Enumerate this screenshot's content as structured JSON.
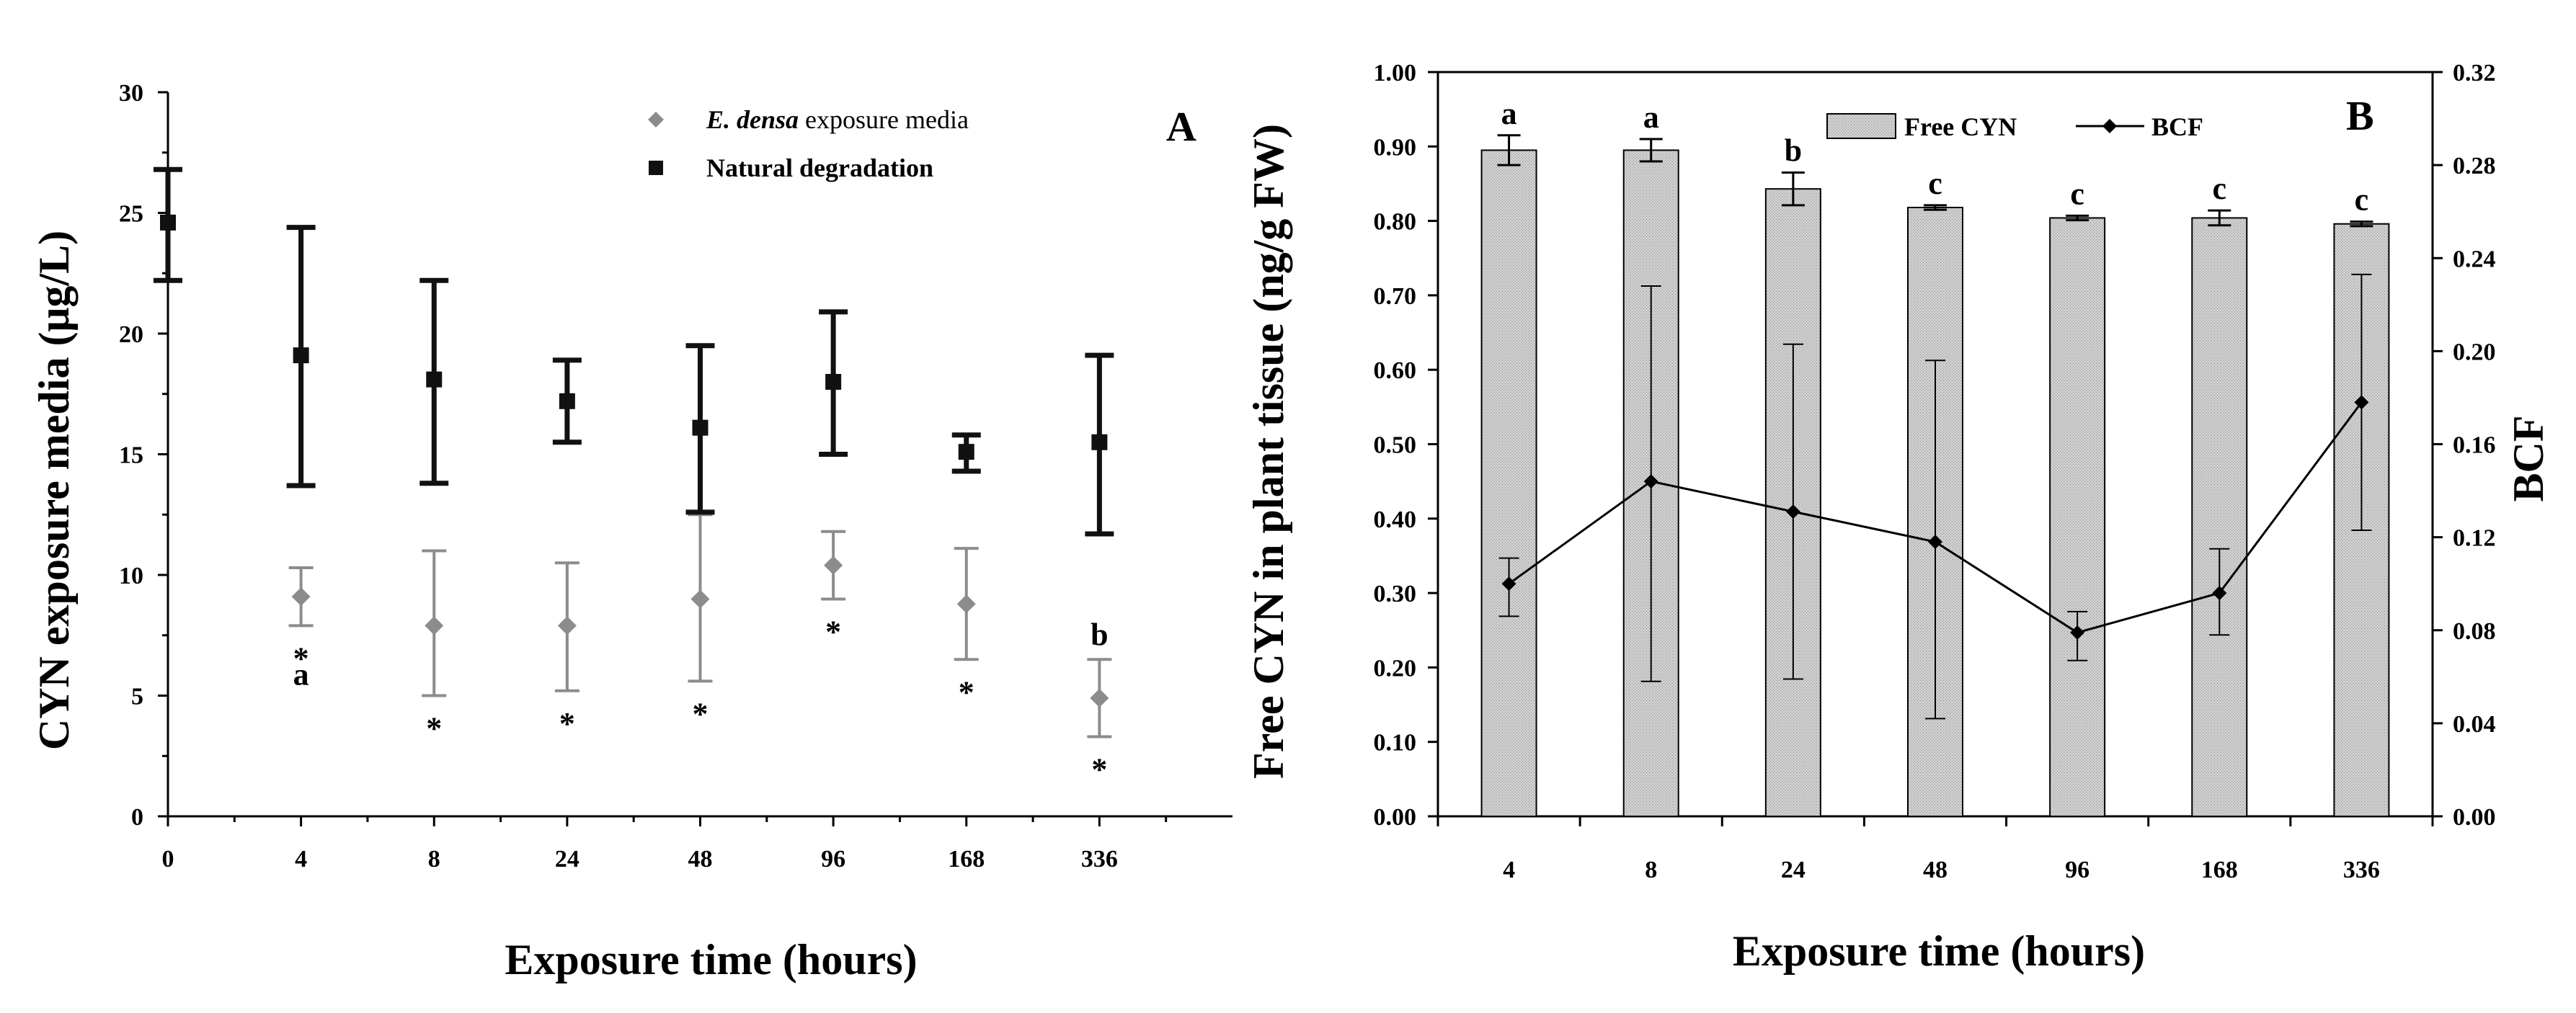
{
  "chart_data": [
    {
      "type": "scatter",
      "panel": "A",
      "xlabel": "Exposure time (hours)",
      "ylabel": "CYN exposure media (μg/L)",
      "categories": [
        "0",
        "4",
        "8",
        "24",
        "48",
        "96",
        "168",
        "336"
      ],
      "ylim": [
        0,
        30
      ],
      "yticks": [
        "0",
        "5",
        "10",
        "15",
        "20",
        "25",
        "30"
      ],
      "grid": false,
      "legend_position": "top-right",
      "legend": [
        {
          "italic": "E. densa",
          "rest": " exposure media"
        },
        {
          "italic": "",
          "rest": "Natural degradation"
        }
      ],
      "series": [
        {
          "name": "E. densa exposure media",
          "marker": "diamond",
          "color": "#8c8c8c",
          "categories": [
            "4",
            "8",
            "24",
            "48",
            "96",
            "168",
            "336"
          ],
          "values": [
            9.1,
            7.9,
            7.9,
            9.0,
            10.4,
            8.8,
            4.9
          ],
          "err_low": [
            7.9,
            5.0,
            5.2,
            5.6,
            9.0,
            6.5,
            3.3
          ],
          "err_high": [
            10.3,
            11.0,
            10.5,
            12.5,
            11.8,
            11.1,
            6.5
          ]
        },
        {
          "name": "Natural degradation",
          "marker": "square",
          "color": "#111111",
          "categories": [
            "0",
            "4",
            "8",
            "24",
            "48",
            "96",
            "168",
            "336"
          ],
          "values": [
            24.6,
            19.1,
            18.1,
            17.2,
            16.1,
            18.0,
            15.1,
            15.5
          ],
          "err_low": [
            22.2,
            13.7,
            13.8,
            15.5,
            12.6,
            15.0,
            14.3,
            11.7
          ],
          "err_high": [
            26.8,
            24.4,
            22.2,
            18.9,
            19.5,
            20.9,
            15.8,
            19.1
          ]
        }
      ],
      "annotations": [
        {
          "category": "4",
          "text": "*"
        },
        {
          "category": "4",
          "text": "a"
        },
        {
          "category": "8",
          "text": "*"
        },
        {
          "category": "24",
          "text": "*"
        },
        {
          "category": "48",
          "text": "*"
        },
        {
          "category": "96",
          "text": "*"
        },
        {
          "category": "168",
          "text": "*"
        },
        {
          "category": "336",
          "text": "b"
        },
        {
          "category": "336",
          "text": "*"
        }
      ]
    },
    {
      "type": "bar",
      "panel": "B",
      "xlabel": "Exposure time (hours)",
      "ylabel": "Free CYN in plant tissue (ng/g FW)",
      "y2label": "BCF",
      "categories": [
        "4",
        "8",
        "24",
        "48",
        "96",
        "168",
        "336"
      ],
      "ylim": [
        0,
        1.0
      ],
      "y2lim": [
        0,
        0.32
      ],
      "yticks": [
        "0.00",
        "0.10",
        "0.20",
        "0.30",
        "0.40",
        "0.50",
        "0.60",
        "0.70",
        "0.80",
        "0.90",
        "1.00"
      ],
      "y2ticks": [
        "0.00",
        "0.04",
        "0.08",
        "0.12",
        "0.16",
        "0.20",
        "0.24",
        "0.28",
        "0.32"
      ],
      "grid": false,
      "legend_position": "top-center",
      "series": [
        {
          "name": "Free CYN",
          "type": "bar",
          "color": "#c8c8c8",
          "values": [
            0.895,
            0.895,
            0.843,
            0.818,
            0.804,
            0.804,
            0.796
          ],
          "err": [
            0.02,
            0.015,
            0.022,
            0.003,
            0.003,
            0.01,
            0.003
          ],
          "letters": [
            "a",
            "a",
            "b",
            "c",
            "c",
            "c",
            "c"
          ]
        },
        {
          "name": "BCF",
          "type": "line",
          "axis": "right",
          "color": "#000000",
          "values": [
            0.1,
            0.144,
            0.131,
            0.118,
            0.079,
            0.096,
            0.178
          ],
          "err_low": [
            0.086,
            0.058,
            0.059,
            0.042,
            0.067,
            0.078,
            0.123
          ],
          "err_high": [
            0.111,
            0.228,
            0.203,
            0.196,
            0.088,
            0.115,
            0.233
          ]
        }
      ]
    }
  ]
}
